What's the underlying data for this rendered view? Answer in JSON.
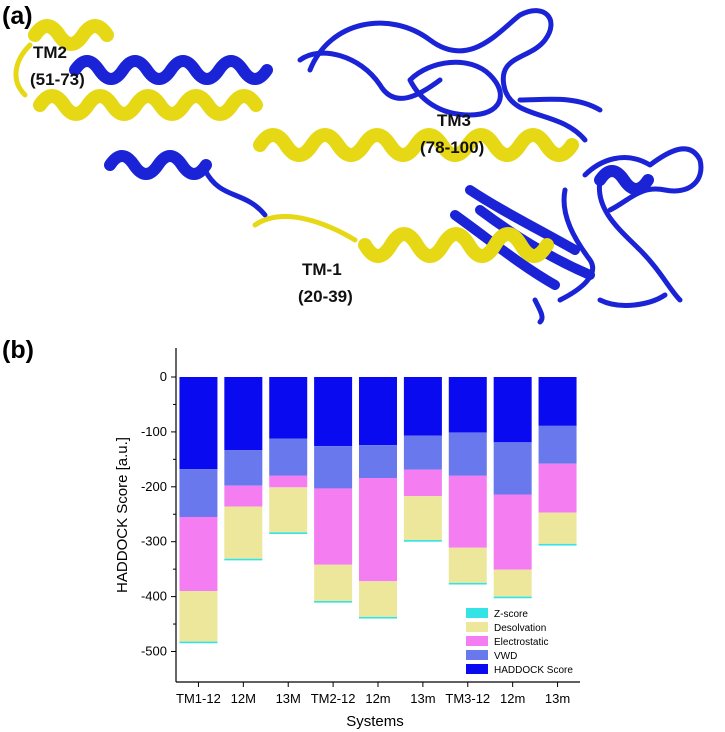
{
  "panel_a": {
    "label": "(a)",
    "segments": [
      {
        "name": "TM2",
        "range": "(51-73)"
      },
      {
        "name": "TM3",
        "range": "(78-100)"
      },
      {
        "name": "TM-1",
        "range": "(20-39)"
      }
    ],
    "colors": {
      "helix_tm": "#e6d814",
      "protein": "#1a23d6"
    }
  },
  "chart_data": {
    "panel_label": "(b)",
    "type": "bar",
    "stacked": true,
    "categories": [
      "TM1-12",
      "12M",
      "13M",
      "TM2-12",
      "12m",
      "13m",
      "TM3-12",
      "12m",
      "13m"
    ],
    "xlabel": "Systems",
    "ylabel": "HADDOCK Score [a.u.]",
    "ylim": [
      -520,
      0
    ],
    "yticks": [
      0,
      -100,
      -200,
      -300,
      -400,
      -500
    ],
    "legend_position": "bottom-right",
    "series": [
      {
        "name": "HADDOCK Score",
        "color": "#0a0af0",
        "values": [
          -168,
          -133,
          -112,
          -126,
          -124,
          -107,
          -101,
          -119,
          -89
        ]
      },
      {
        "name": "VWD",
        "color": "#6a78ee",
        "values": [
          -87,
          -65,
          -68,
          -77,
          -60,
          -62,
          -79,
          -95,
          -69
        ]
      },
      {
        "name": "Electrostatic",
        "color": "#f47ef1",
        "values": [
          -135,
          -38,
          -21,
          -139,
          -188,
          -48,
          -131,
          -137,
          -89
        ]
      },
      {
        "name": "Desolvation",
        "color": "#ede79c",
        "values": [
          -92,
          -95,
          -82,
          -66,
          -65,
          -80,
          -64,
          -49,
          -57
        ]
      },
      {
        "name": "Z-score",
        "color": "#33e3e6",
        "values": [
          -3,
          -3,
          -3,
          -3,
          -3,
          -3,
          -3,
          -3,
          -3
        ]
      }
    ]
  }
}
